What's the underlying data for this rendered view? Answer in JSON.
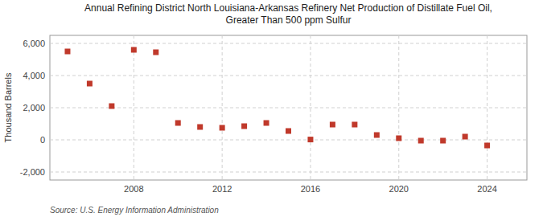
{
  "chart_data": {
    "type": "scatter",
    "title": "Annual Refining District North Louisiana-Arkansas Refinery Net Production of Distillate Fuel Oil,\nGreater Than 500 ppm Sulfur",
    "ylabel": "Thousand Barrels",
    "annotations": [
      "Source: U.S. Energy Information Administration"
    ],
    "x": [
      2005,
      2006,
      2007,
      2008,
      2009,
      2010,
      2011,
      2012,
      2013,
      2014,
      2015,
      2016,
      2017,
      2018,
      2019,
      2020,
      2021,
      2022,
      2023,
      2024
    ],
    "values": [
      5500,
      3500,
      2100,
      5600,
      5450,
      1050,
      800,
      750,
      850,
      1050,
      550,
      20,
      950,
      950,
      300,
      100,
      -50,
      -50,
      200,
      -350
    ],
    "color": "#c0392b",
    "marker": "square",
    "xlim": [
      2004.2,
      2025.8
    ],
    "xticks": [
      2008,
      2012,
      2016,
      2020,
      2024
    ],
    "ylim": [
      -2500,
      6500
    ],
    "yticks": [
      {
        "value": -2000,
        "label": "-2,000"
      },
      0,
      {
        "value": 2000,
        "label": "2,000"
      },
      {
        "value": 4000,
        "label": "4,000"
      },
      {
        "value": 6000,
        "label": "6,000"
      }
    ],
    "grid": true
  }
}
